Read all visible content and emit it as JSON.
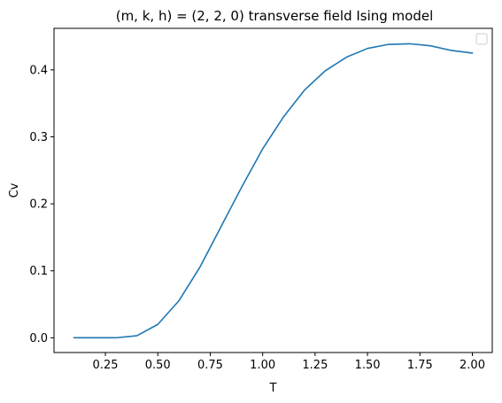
{
  "chart_data": {
    "type": "line",
    "title": "(m, k, h) = (2, 2, 0) transverse field Ising model",
    "xlabel": "T",
    "ylabel": "Cv",
    "xlim": [
      0.005,
      2.095
    ],
    "ylim": [
      -0.022,
      0.462
    ],
    "xticks": [
      0.25,
      0.5,
      0.75,
      1.0,
      1.25,
      1.5,
      1.75,
      2.0
    ],
    "xtick_labels": [
      "0.25",
      "0.50",
      "0.75",
      "1.00",
      "1.25",
      "1.50",
      "1.75",
      "2.00"
    ],
    "yticks": [
      0.0,
      0.1,
      0.2,
      0.3,
      0.4
    ],
    "ytick_labels": [
      "0.0",
      "0.1",
      "0.2",
      "0.3",
      "0.4"
    ],
    "grid": false,
    "legend": {
      "placement": "top-right",
      "entries": []
    },
    "colors": {
      "line": "#1f77b4",
      "axes": "#000000"
    },
    "series": [
      {
        "x": [
          0.1,
          0.2,
          0.3,
          0.4,
          0.5,
          0.6,
          0.7,
          0.8,
          0.9,
          1.0,
          1.1,
          1.2,
          1.3,
          1.4,
          1.5,
          1.6,
          1.7,
          1.8,
          1.9,
          2.0
        ],
        "y": [
          0.0,
          0.0,
          0.0,
          0.003,
          0.02,
          0.055,
          0.105,
          0.165,
          0.225,
          0.282,
          0.33,
          0.37,
          0.399,
          0.419,
          0.432,
          0.438,
          0.439,
          0.436,
          0.429,
          0.425
        ]
      }
    ]
  }
}
